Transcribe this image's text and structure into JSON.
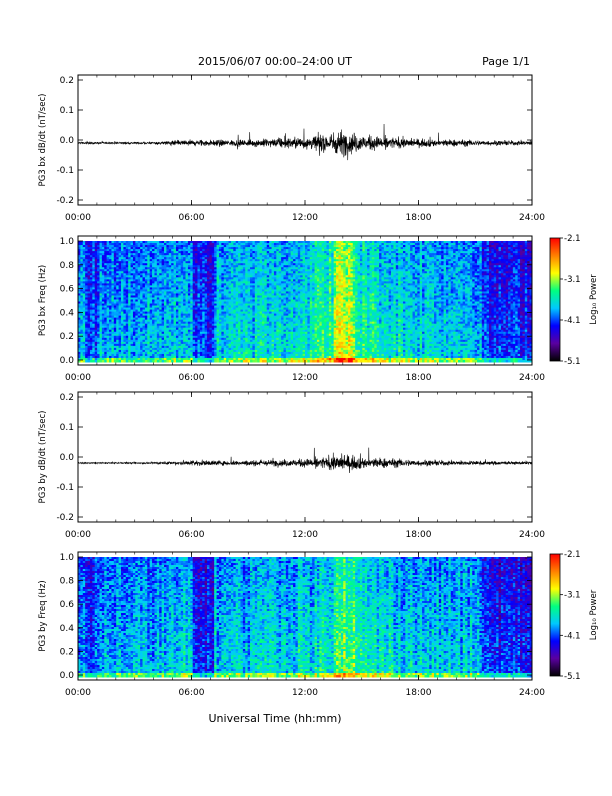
{
  "header": {
    "title": "2015/06/07  00:00–24:00 UT",
    "page": "Page 1/1"
  },
  "footer": {
    "xlabel": "Universal Time (hh:mm)"
  },
  "colorbar": {
    "label": "Log₁₀ Power",
    "ticks": [
      "-2.1",
      "-3.1",
      "-4.1",
      "-5.1"
    ],
    "colors": [
      "#000000",
      "#5a00a0",
      "#0000ff",
      "#00c8ff",
      "#00ff80",
      "#ffff00",
      "#ff8000",
      "#ff0000"
    ]
  },
  "chart_data": [
    {
      "type": "line",
      "name": "bx-time-series",
      "ylabel": "PG3 bx dB/dt (nT/sec)",
      "x_ticks": [
        "00:00",
        "06:00",
        "12:00",
        "18:00",
        "24:00"
      ],
      "y_ticks": [
        "0.2",
        "0.1",
        "0.0",
        "-0.1",
        "-0.2"
      ],
      "xlim": [
        0,
        24
      ],
      "ylim": [
        -0.2,
        0.2
      ],
      "baseline": -0.01,
      "activity_envelope": {
        "hours": [
          0,
          4,
          5,
          6,
          8,
          10,
          11,
          12,
          13,
          14,
          15,
          16,
          17,
          18,
          20,
          21,
          22,
          24
        ],
        "amplitude": [
          0.003,
          0.004,
          0.008,
          0.012,
          0.01,
          0.014,
          0.018,
          0.022,
          0.03,
          0.045,
          0.028,
          0.022,
          0.018,
          0.014,
          0.012,
          0.01,
          0.008,
          0.008
        ]
      }
    },
    {
      "type": "heatmap",
      "name": "bx-spectrogram",
      "ylabel": "PG3 bx Freq (Hz)",
      "x_ticks": [
        "00:00",
        "06:00",
        "12:00",
        "18:00",
        "24:00"
      ],
      "y_ticks": [
        "1.0",
        "0.8",
        "0.6",
        "0.4",
        "0.2",
        "0.0"
      ],
      "xlim": [
        0,
        24
      ],
      "ylim": [
        0,
        1.0
      ],
      "zlim": [
        -5.1,
        -2.1
      ]
    },
    {
      "type": "line",
      "name": "by-time-series",
      "ylabel": "PG3 by dB/dt (nT/sec)",
      "x_ticks": [
        "00:00",
        "06:00",
        "12:00",
        "18:00",
        "24:00"
      ],
      "y_ticks": [
        "0.2",
        "0.1",
        "0.0",
        "-0.1",
        "-0.2"
      ],
      "xlim": [
        0,
        24
      ],
      "ylim": [
        -0.2,
        0.2
      ],
      "baseline": -0.02,
      "activity_envelope": {
        "hours": [
          0,
          4,
          5,
          6,
          8,
          10,
          11,
          12,
          13,
          14,
          15,
          16,
          17,
          18,
          20,
          21,
          22,
          24
        ],
        "amplitude": [
          0.002,
          0.003,
          0.006,
          0.01,
          0.008,
          0.01,
          0.012,
          0.014,
          0.02,
          0.03,
          0.02,
          0.018,
          0.014,
          0.01,
          0.008,
          0.007,
          0.006,
          0.005
        ]
      }
    },
    {
      "type": "heatmap",
      "name": "by-spectrogram",
      "ylabel": "PG3 by Freq (Hz)",
      "x_ticks": [
        "00:00",
        "06:00",
        "12:00",
        "18:00",
        "24:00"
      ],
      "y_ticks": [
        "1.0",
        "0.8",
        "0.6",
        "0.4",
        "0.2",
        "0.0"
      ],
      "xlim": [
        0,
        24
      ],
      "ylim": [
        0,
        1.0
      ],
      "zlim": [
        -5.1,
        -2.1
      ]
    }
  ]
}
